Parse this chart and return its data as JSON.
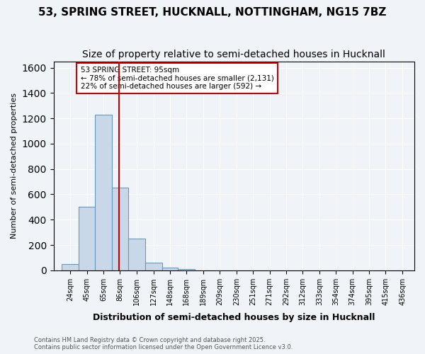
{
  "title": "53, SPRING STREET, HUCKNALL, NOTTINGHAM, NG15 7BZ",
  "subtitle": "Size of property relative to semi-detached houses in Hucknall",
  "xlabel": "Distribution of semi-detached houses by size in Hucknall",
  "ylabel": "Number of semi-detached properties",
  "footnote": "Contains HM Land Registry data © Crown copyright and database right 2025.\nContains public sector information licensed under the Open Government Licence v3.0.",
  "bin_labels": [
    "24sqm",
    "45sqm",
    "65sqm",
    "86sqm",
    "106sqm",
    "127sqm",
    "148sqm",
    "168sqm",
    "189sqm",
    "209sqm",
    "230sqm",
    "251sqm",
    "271sqm",
    "292sqm",
    "312sqm",
    "333sqm",
    "354sqm",
    "374sqm",
    "395sqm",
    "415sqm",
    "436sqm"
  ],
  "bin_edges": [
    24,
    45,
    65,
    86,
    106,
    127,
    148,
    168,
    189,
    209,
    230,
    251,
    271,
    292,
    312,
    333,
    354,
    374,
    395,
    415,
    436
  ],
  "bar_heights": [
    50,
    500,
    1230,
    650,
    250,
    60,
    20,
    10,
    0,
    0,
    0,
    0,
    0,
    0,
    0,
    0,
    0,
    0,
    0,
    0,
    0
  ],
  "bar_color": "#c8d8e8",
  "bar_edge_color": "#6699bb",
  "red_line_x": 95,
  "annotation_title": "53 SPRING STREET: 95sqm",
  "annotation_line1": "← 78% of semi-detached houses are smaller (2,131)",
  "annotation_line2": "22% of semi-detached houses are larger (592) →",
  "annotation_box_color": "#ffffff",
  "annotation_border_color": "#cc0000",
  "red_line_color": "#cc0000",
  "ylim": [
    0,
    1650
  ],
  "background_color": "#f0f4f8",
  "plot_background": "#f0f4f8",
  "grid_color": "#ffffff",
  "title_fontsize": 11,
  "subtitle_fontsize": 10
}
